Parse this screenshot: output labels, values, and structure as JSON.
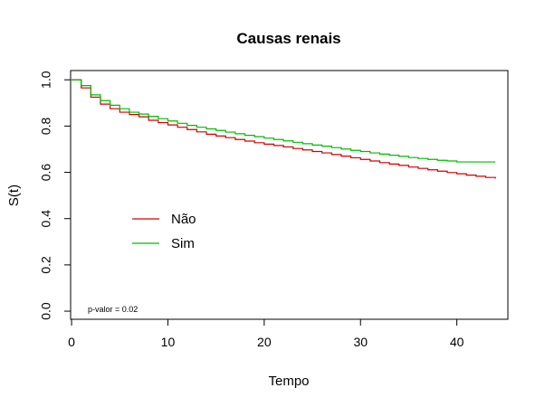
{
  "chart_data": {
    "type": "line",
    "subtype": "step",
    "title": "Causas renais",
    "xlabel": "Tempo",
    "ylabel": "S(t)",
    "xlim": [
      0,
      45
    ],
    "ylim": [
      0,
      1
    ],
    "xticks": [
      0,
      10,
      20,
      30,
      40
    ],
    "yticks": [
      0.0,
      0.2,
      0.4,
      0.6,
      0.8,
      1.0
    ],
    "ytick_labels": [
      "0.0",
      "0.2",
      "0.4",
      "0.6",
      "0.8",
      "1.0"
    ],
    "grid": false,
    "legend_position": "left-middle",
    "annotation": "p-valor = 0.02",
    "series": [
      {
        "name": "Não",
        "color": "#cc0000",
        "x": [
          0,
          1,
          2,
          3,
          4,
          5,
          6,
          7,
          8,
          9,
          10,
          11,
          12,
          13,
          14,
          15,
          16,
          17,
          18,
          19,
          20,
          21,
          22,
          23,
          24,
          25,
          26,
          27,
          28,
          29,
          30,
          31,
          32,
          33,
          34,
          35,
          36,
          37,
          38,
          39,
          40,
          41,
          42,
          43,
          44
        ],
        "y": [
          1.0,
          0.965,
          0.925,
          0.895,
          0.875,
          0.86,
          0.85,
          0.84,
          0.825,
          0.815,
          0.805,
          0.795,
          0.785,
          0.775,
          0.765,
          0.757,
          0.75,
          0.742,
          0.735,
          0.728,
          0.722,
          0.716,
          0.71,
          0.703,
          0.697,
          0.69,
          0.684,
          0.677,
          0.67,
          0.663,
          0.656,
          0.649,
          0.642,
          0.636,
          0.63,
          0.623,
          0.617,
          0.611,
          0.605,
          0.599,
          0.594,
          0.588,
          0.583,
          0.578,
          0.573
        ]
      },
      {
        "name": "Sim",
        "color": "#00bb00",
        "x": [
          0,
          1,
          2,
          3,
          4,
          5,
          6,
          7,
          8,
          9,
          10,
          11,
          12,
          13,
          14,
          15,
          16,
          17,
          18,
          19,
          20,
          21,
          22,
          23,
          24,
          25,
          26,
          27,
          28,
          29,
          30,
          31,
          32,
          33,
          34,
          35,
          36,
          37,
          38,
          39,
          40,
          41,
          42,
          43,
          44
        ],
        "y": [
          1.0,
          0.975,
          0.935,
          0.91,
          0.89,
          0.875,
          0.86,
          0.852,
          0.842,
          0.832,
          0.822,
          0.812,
          0.803,
          0.795,
          0.788,
          0.781,
          0.774,
          0.767,
          0.76,
          0.754,
          0.748,
          0.742,
          0.736,
          0.73,
          0.724,
          0.718,
          0.713,
          0.707,
          0.701,
          0.695,
          0.69,
          0.684,
          0.679,
          0.674,
          0.669,
          0.664,
          0.66,
          0.656,
          0.652,
          0.649,
          0.645,
          0.645,
          0.645,
          0.645,
          0.645
        ]
      }
    ]
  }
}
